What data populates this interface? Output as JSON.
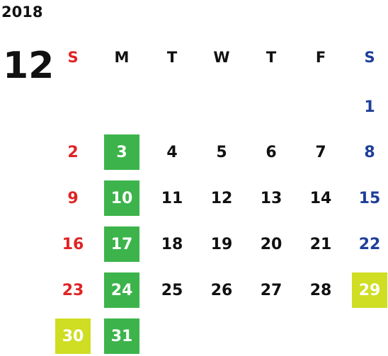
{
  "calendar": {
    "year": "2018",
    "month": "12",
    "weekdays": [
      "S",
      "M",
      "T",
      "W",
      "T",
      "F",
      "S"
    ],
    "colors": {
      "sunday": "#e02424",
      "saturday": "#1f3f9a",
      "weekday": "#111111",
      "highlight_green": "#3cb44b",
      "highlight_yellow": "#cfdd23"
    },
    "weeks": [
      [
        {
          "d": ""
        },
        {
          "d": ""
        },
        {
          "d": ""
        },
        {
          "d": ""
        },
        {
          "d": ""
        },
        {
          "d": ""
        },
        {
          "d": "1"
        }
      ],
      [
        {
          "d": "2"
        },
        {
          "d": "3",
          "hl": "green"
        },
        {
          "d": "4"
        },
        {
          "d": "5"
        },
        {
          "d": "6"
        },
        {
          "d": "7"
        },
        {
          "d": "8"
        }
      ],
      [
        {
          "d": "9"
        },
        {
          "d": "10",
          "hl": "green"
        },
        {
          "d": "11"
        },
        {
          "d": "12"
        },
        {
          "d": "13"
        },
        {
          "d": "14"
        },
        {
          "d": "15"
        }
      ],
      [
        {
          "d": "16"
        },
        {
          "d": "17",
          "hl": "green"
        },
        {
          "d": "18"
        },
        {
          "d": "19"
        },
        {
          "d": "20"
        },
        {
          "d": "21"
        },
        {
          "d": "22"
        }
      ],
      [
        {
          "d": "23"
        },
        {
          "d": "24",
          "hl": "green"
        },
        {
          "d": "25"
        },
        {
          "d": "26"
        },
        {
          "d": "27"
        },
        {
          "d": "28"
        },
        {
          "d": "29",
          "hl": "yellow"
        }
      ],
      [
        {
          "d": "30",
          "hl": "yellow"
        },
        {
          "d": "31",
          "hl": "green"
        },
        {
          "d": ""
        },
        {
          "d": ""
        },
        {
          "d": ""
        },
        {
          "d": ""
        },
        {
          "d": ""
        }
      ]
    ]
  }
}
